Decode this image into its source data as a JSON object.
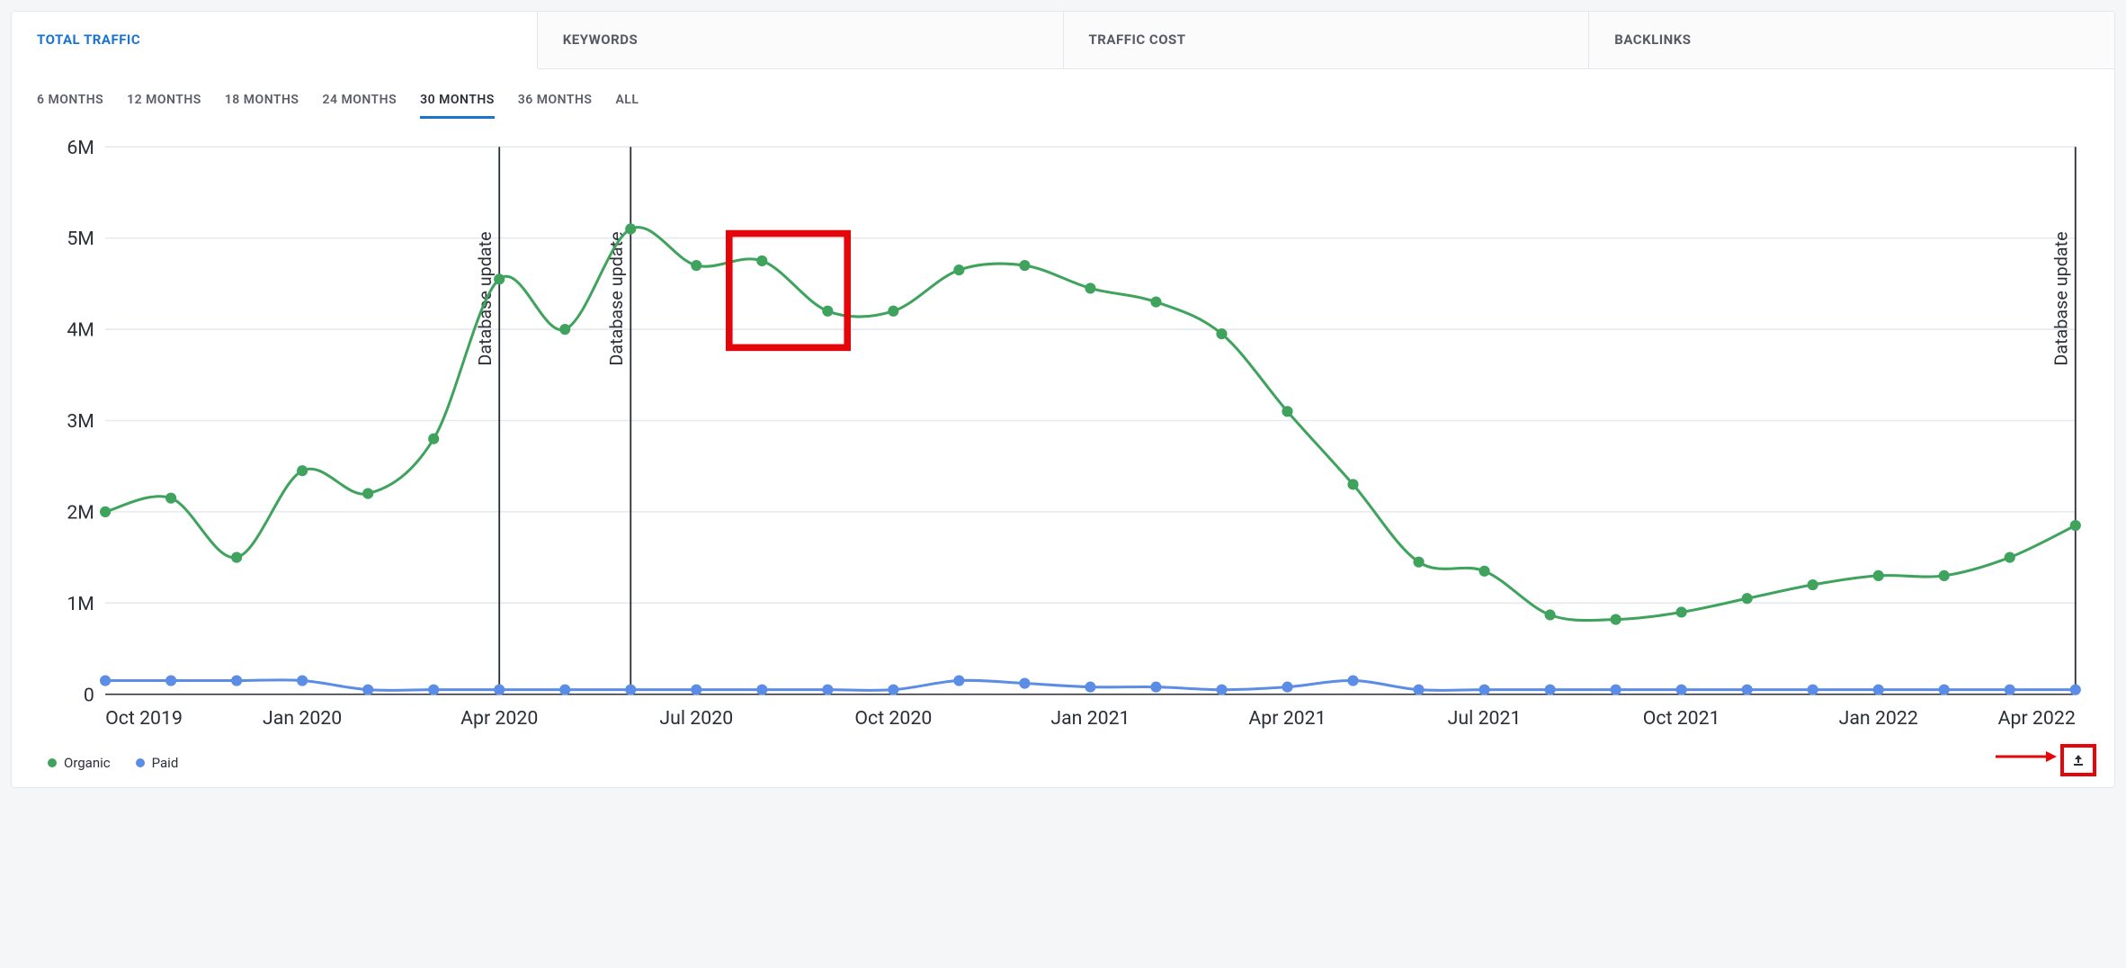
{
  "tabs": [
    {
      "id": "total-traffic",
      "label": "TOTAL TRAFFIC",
      "active": true
    },
    {
      "id": "keywords",
      "label": "KEYWORDS",
      "active": false
    },
    {
      "id": "traffic-cost",
      "label": "TRAFFIC COST",
      "active": false
    },
    {
      "id": "backlinks",
      "label": "BACKLINKS",
      "active": false
    }
  ],
  "ranges": [
    {
      "id": "6m",
      "label": "6 MONTHS",
      "active": false
    },
    {
      "id": "12m",
      "label": "12 MONTHS",
      "active": false
    },
    {
      "id": "18m",
      "label": "18 MONTHS",
      "active": false
    },
    {
      "id": "24m",
      "label": "24 MONTHS",
      "active": false
    },
    {
      "id": "30m",
      "label": "30 MONTHS",
      "active": true
    },
    {
      "id": "36m",
      "label": "36 MONTHS",
      "active": false
    },
    {
      "id": "all",
      "label": "ALL",
      "active": false
    }
  ],
  "legend": {
    "organic": {
      "label": "Organic",
      "color": "#3fa35e"
    },
    "paid": {
      "label": "Paid",
      "color": "#5b8de6"
    }
  },
  "chart": {
    "type": "line",
    "ylim": [
      0,
      6
    ],
    "ytick_step": 1,
    "y_tick_labels": [
      "0",
      "1M",
      "2M",
      "3M",
      "4M",
      "5M",
      "6M"
    ],
    "x_tick_indices": [
      0,
      3,
      6,
      9,
      12,
      15,
      18,
      21,
      24,
      27,
      30
    ],
    "x_tick_labels": [
      "Oct 2019",
      "Jan 2020",
      "Apr 2020",
      "Jul 2020",
      "Oct 2020",
      "Jan 2021",
      "Apr 2021",
      "Jul 2021",
      "Oct 2021",
      "Jan 2022",
      "Apr 2022"
    ],
    "n_points": 31,
    "grid_color": "#e6e8ee",
    "axis_color": "#2b2f38",
    "background_color": "#ffffff",
    "label_fontsize": 14,
    "series": {
      "organic": {
        "color": "#3fa35e",
        "line_width": 2,
        "marker_radius": 4,
        "values": [
          2.0,
          2.15,
          1.5,
          2.45,
          2.2,
          2.8,
          4.55,
          4.0,
          5.1,
          4.7,
          4.75,
          4.2,
          4.2,
          4.65,
          4.7,
          4.45,
          4.3,
          3.95,
          3.1,
          2.3,
          1.45,
          1.35,
          0.87,
          0.82,
          0.9,
          1.05,
          1.2,
          1.3,
          1.3,
          1.5,
          1.85
        ]
      },
      "paid": {
        "color": "#5b8de6",
        "line_width": 2,
        "marker_radius": 4,
        "values": [
          0.15,
          0.15,
          0.15,
          0.15,
          0.05,
          0.05,
          0.05,
          0.05,
          0.05,
          0.05,
          0.05,
          0.05,
          0.05,
          0.15,
          0.12,
          0.08,
          0.08,
          0.05,
          0.08,
          0.15,
          0.05,
          0.05,
          0.05,
          0.05,
          0.05,
          0.05,
          0.05,
          0.05,
          0.05,
          0.05,
          0.05
        ]
      }
    },
    "verticals": [
      {
        "index": 6,
        "label": "Database update"
      },
      {
        "index": 8,
        "label": "Database update"
      },
      {
        "index": 30,
        "label": "Database update"
      }
    ],
    "highlight_box": {
      "x_start": 9.5,
      "x_end": 11.3,
      "y_top": 5.05,
      "y_bot": 3.8,
      "stroke": "#e3060b",
      "stroke_width": 5
    }
  },
  "annotations": {
    "export_icon": "export-icon",
    "arrow_color": "#e3060b"
  }
}
